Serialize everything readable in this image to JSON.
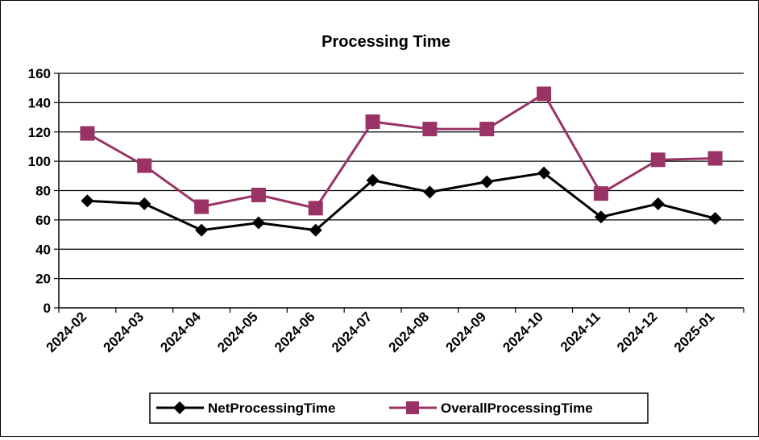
{
  "chart_data": {
    "type": "line",
    "title": "Processing Time",
    "xlabel": "",
    "ylabel": "",
    "categories": [
      "2024-02",
      "2024-03",
      "2024-04",
      "2024-05",
      "2024-06",
      "2024-07",
      "2024-08",
      "2024-09",
      "2024-10",
      "2024-11",
      "2024-12",
      "2025-01"
    ],
    "ylim": [
      0,
      160
    ],
    "yticks": [
      "0",
      "20",
      "40",
      "60",
      "80",
      "100",
      "120",
      "140",
      "160"
    ],
    "grid": true,
    "legend_position": "bottom",
    "series": [
      {
        "name": "NetProcessingTime",
        "values": [
          73,
          71,
          53,
          58,
          53,
          87,
          79,
          86,
          92,
          62,
          71,
          61
        ],
        "color": "#000000",
        "marker": "diamond"
      },
      {
        "name": "OverallProcessingTime",
        "values": [
          119,
          97,
          69,
          77,
          68,
          127,
          122,
          122,
          146,
          78,
          101,
          102
        ],
        "color": "#993366",
        "marker": "square"
      }
    ]
  }
}
